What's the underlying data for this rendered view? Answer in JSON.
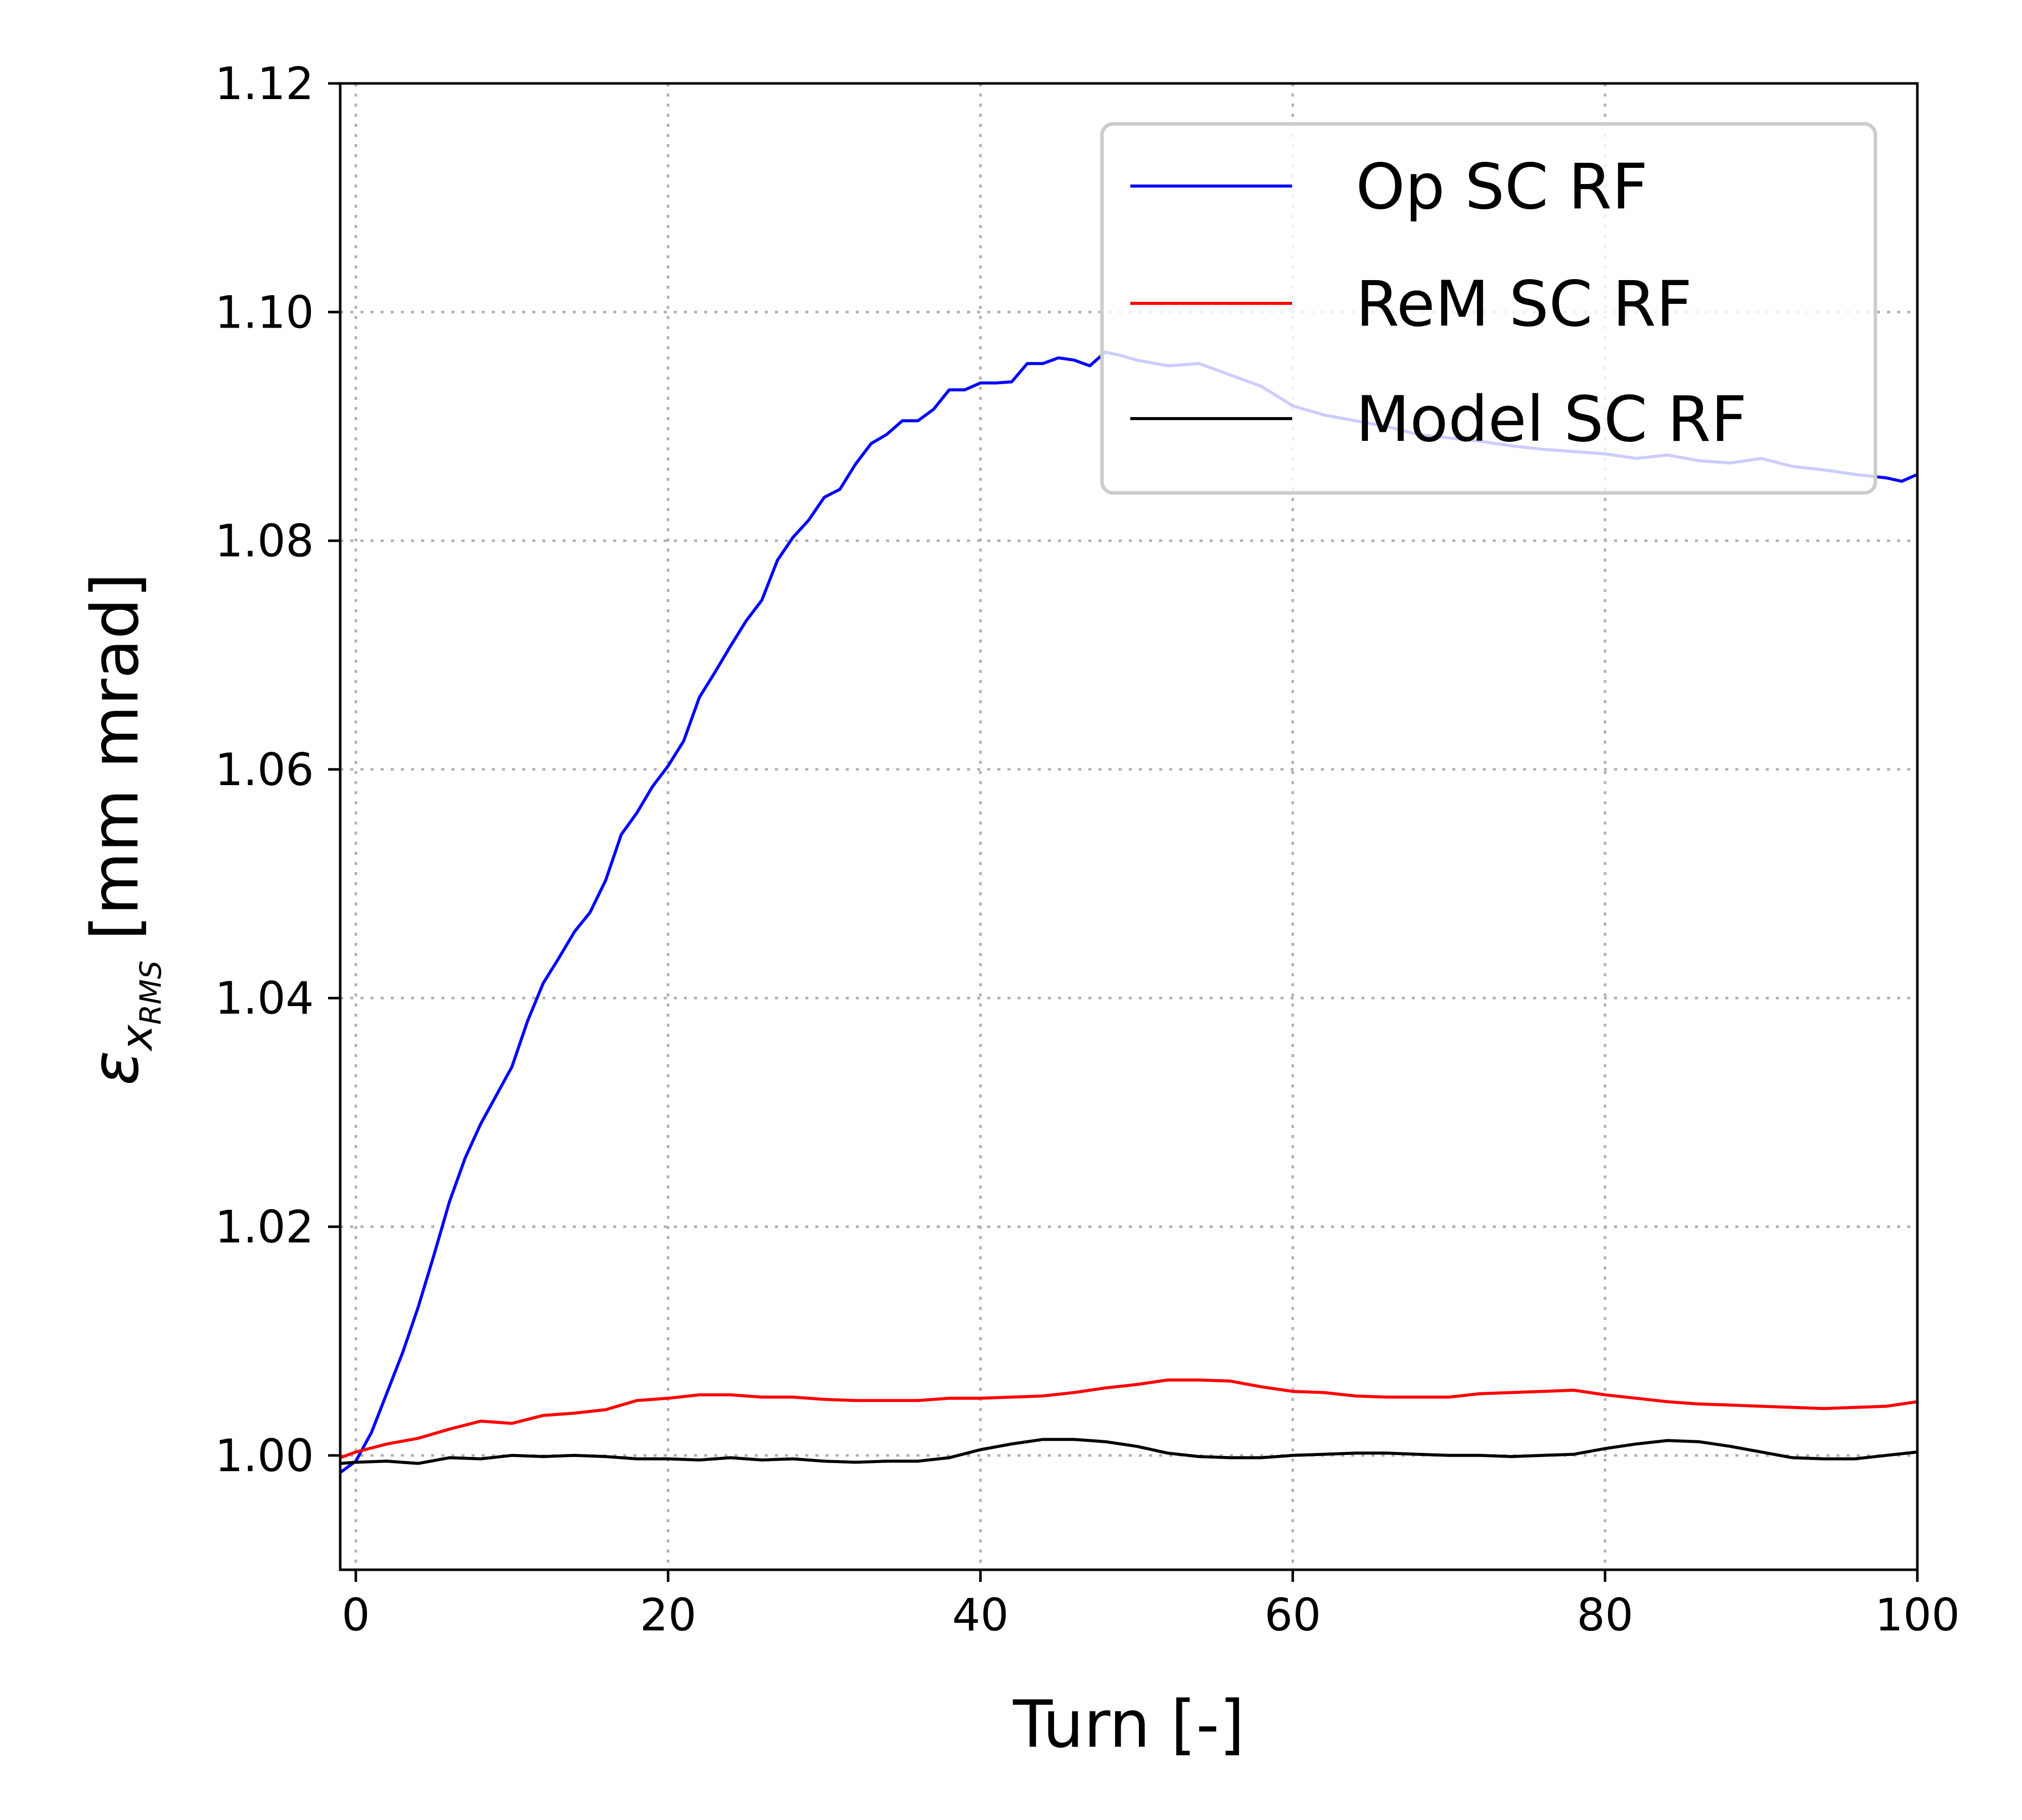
{
  "chart_data": {
    "type": "line",
    "xlabel": "Turn [-]",
    "ylabel_symbol": "ε",
    "ylabel_sub": "x",
    "ylabel_subsub": "RMS",
    "ylabel_unit": "[mm mrad]",
    "xlim": [
      -1,
      100
    ],
    "ylim": [
      0.99,
      1.12
    ],
    "xticks": [
      0,
      20,
      40,
      60,
      80,
      100
    ],
    "xtick_labels": [
      "0",
      "20",
      "40",
      "60",
      "80",
      "100"
    ],
    "yticks": [
      1.0,
      1.02,
      1.04,
      1.06,
      1.08,
      1.1,
      1.12
    ],
    "ytick_labels": [
      "1.00",
      "1.02",
      "1.04",
      "1.06",
      "1.08",
      "1.10",
      "1.12"
    ],
    "grid": true,
    "legend_position": "top-right",
    "series": [
      {
        "name": "Op SC RF",
        "color": "#0000ff",
        "x": [
          -1,
          0,
          1,
          2,
          3,
          4,
          5,
          6,
          7,
          8,
          9,
          10,
          11,
          12,
          13,
          14,
          15,
          16,
          17,
          18,
          19,
          20,
          21,
          22,
          23,
          24,
          25,
          26,
          27,
          28,
          29,
          30,
          31,
          32,
          33,
          34,
          35,
          36,
          37,
          38,
          39,
          40,
          41,
          42,
          43,
          44,
          45,
          46,
          47,
          48,
          49,
          50,
          52,
          54,
          56,
          58,
          60,
          62,
          64,
          66,
          68,
          70,
          72,
          74,
          76,
          78,
          80,
          82,
          84,
          86,
          88,
          90,
          92,
          94,
          96,
          98,
          99,
          100
        ],
        "y": [
          0.9985,
          0.9995,
          1.002,
          1.0055,
          1.009,
          1.013,
          1.0175,
          1.0222,
          1.026,
          1.029,
          1.0315,
          1.034,
          1.038,
          1.0413,
          1.0435,
          1.0458,
          1.0475,
          1.0503,
          1.0543,
          1.0562,
          1.0585,
          1.0603,
          1.0625,
          1.0663,
          1.0685,
          1.0708,
          1.073,
          1.0748,
          1.0783,
          1.0803,
          1.0818,
          1.0838,
          1.0845,
          1.0867,
          1.0885,
          1.0893,
          1.0905,
          1.0905,
          1.0915,
          1.0932,
          1.0932,
          1.0938,
          1.0938,
          1.0939,
          1.0955,
          1.0955,
          1.096,
          1.0958,
          1.0953,
          1.0965,
          1.0962,
          1.0958,
          1.0953,
          1.0955,
          1.0945,
          1.0935,
          1.0918,
          1.091,
          1.0905,
          1.09,
          1.0893,
          1.089,
          1.0887,
          1.0883,
          1.088,
          1.0878,
          1.0876,
          1.0872,
          1.0875,
          1.087,
          1.0868,
          1.0872,
          1.0865,
          1.0862,
          1.0858,
          1.0855,
          1.0852,
          1.0858
        ]
      },
      {
        "name": "ReM SC RF",
        "color": "#ff0000",
        "x": [
          -1,
          0,
          2,
          4,
          6,
          8,
          10,
          12,
          14,
          16,
          18,
          20,
          22,
          24,
          26,
          28,
          30,
          32,
          34,
          36,
          38,
          40,
          42,
          44,
          46,
          48,
          50,
          52,
          54,
          56,
          58,
          60,
          62,
          64,
          66,
          68,
          70,
          72,
          74,
          76,
          78,
          80,
          82,
          84,
          86,
          88,
          90,
          92,
          94,
          96,
          98,
          100
        ],
        "y": [
          0.9998,
          1.0003,
          1.001,
          1.0015,
          1.0023,
          1.003,
          1.0028,
          1.0035,
          1.0037,
          1.004,
          1.0048,
          1.005,
          1.0053,
          1.0053,
          1.0051,
          1.0051,
          1.0049,
          1.0048,
          1.0048,
          1.0048,
          1.005,
          1.005,
          1.0051,
          1.0052,
          1.0055,
          1.0059,
          1.0062,
          1.0066,
          1.0066,
          1.0065,
          1.006,
          1.0056,
          1.0055,
          1.0052,
          1.0051,
          1.0051,
          1.0051,
          1.0054,
          1.0055,
          1.0056,
          1.0057,
          1.0053,
          1.005,
          1.0047,
          1.0045,
          1.0044,
          1.0043,
          1.0042,
          1.0041,
          1.0042,
          1.0043,
          1.0047
        ]
      },
      {
        "name": "Model SC RF",
        "color": "#000000",
        "x": [
          -1,
          0,
          2,
          4,
          6,
          8,
          10,
          12,
          14,
          16,
          18,
          20,
          22,
          24,
          26,
          28,
          30,
          32,
          34,
          36,
          38,
          40,
          42,
          44,
          46,
          48,
          50,
          52,
          54,
          56,
          58,
          60,
          62,
          64,
          66,
          68,
          70,
          72,
          74,
          76,
          78,
          80,
          82,
          84,
          86,
          88,
          90,
          92,
          94,
          96,
          98,
          100
        ],
        "y": [
          0.9993,
          0.9994,
          0.9995,
          0.9993,
          0.9998,
          0.9997,
          1.0,
          0.9999,
          1.0,
          0.9999,
          0.9997,
          0.9997,
          0.9996,
          0.9998,
          0.9996,
          0.9997,
          0.9995,
          0.9994,
          0.9995,
          0.9995,
          0.9998,
          1.0005,
          1.001,
          1.0014,
          1.0014,
          1.0012,
          1.0008,
          1.0002,
          0.9999,
          0.9998,
          0.9998,
          1.0,
          1.0001,
          1.0002,
          1.0002,
          1.0001,
          1.0,
          1.0,
          0.9999,
          1.0,
          1.0001,
          1.0006,
          1.001,
          1.0013,
          1.0012,
          1.0008,
          1.0003,
          0.9998,
          0.9997,
          0.9997,
          1.0,
          1.0003
        ]
      }
    ]
  }
}
